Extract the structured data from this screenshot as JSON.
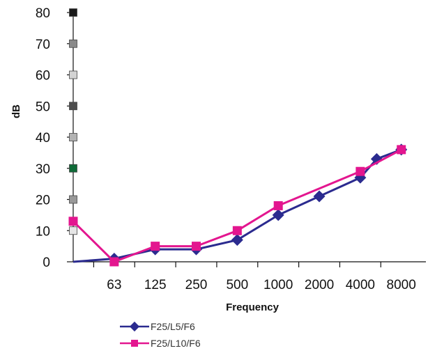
{
  "chart_data": {
    "type": "line",
    "title": "",
    "xlabel": "Frequency",
    "ylabel": "dB",
    "ylim": [
      0,
      80
    ],
    "yticks": [
      0,
      10,
      20,
      30,
      40,
      50,
      60,
      70,
      80
    ],
    "xlim": [
      0,
      8.6
    ],
    "xtick_labels": [
      {
        "x": 1,
        "label": "63"
      },
      {
        "x": 2,
        "label": "125"
      },
      {
        "x": 3,
        "label": "250"
      },
      {
        "x": 4,
        "label": "500"
      },
      {
        "x": 5,
        "label": "1000"
      },
      {
        "x": 6,
        "label": "2000"
      },
      {
        "x": 7,
        "label": "4000"
      },
      {
        "x": 8,
        "label": "8000"
      }
    ],
    "grid": false,
    "legend_position": "bottom-center",
    "series": [
      {
        "name": "F25/L5/F6",
        "color": "#2B2B8F",
        "marker": "diamond",
        "points": [
          {
            "x": 0,
            "y": 0
          },
          {
            "x": 1,
            "y": 1
          },
          {
            "x": 2,
            "y": 4
          },
          {
            "x": 3,
            "y": 4
          },
          {
            "x": 4,
            "y": 7
          },
          {
            "x": 5,
            "y": 15
          },
          {
            "x": 6,
            "y": 21
          },
          {
            "x": 7,
            "y": 27
          },
          {
            "x": 7.4,
            "y": 33
          },
          {
            "x": 8,
            "y": 36
          }
        ]
      },
      {
        "name": "F25/L10/F6",
        "color": "#E3168F",
        "marker": "square",
        "points": [
          {
            "x": 0,
            "y": 13
          },
          {
            "x": 1,
            "y": 0
          },
          {
            "x": 2,
            "y": 5
          },
          {
            "x": 3,
            "y": 5
          },
          {
            "x": 4,
            "y": 10
          },
          {
            "x": 5,
            "y": 18
          },
          {
            "x": 7,
            "y": 29
          },
          {
            "x": 8,
            "y": 36
          }
        ]
      }
    ],
    "level_markers": [
      {
        "y": 80,
        "color": "#1A1A1A"
      },
      {
        "y": 70,
        "color": "#8A8A8A"
      },
      {
        "y": 60,
        "color": "#D3D3D3"
      },
      {
        "y": 50,
        "color": "#4D4D4D"
      },
      {
        "y": 40,
        "color": "#B3B3B3"
      },
      {
        "y": 30,
        "color": "#0F6B38"
      },
      {
        "y": 20,
        "color": "#999999"
      },
      {
        "y": 10,
        "color": "#E6E6E6"
      }
    ]
  }
}
